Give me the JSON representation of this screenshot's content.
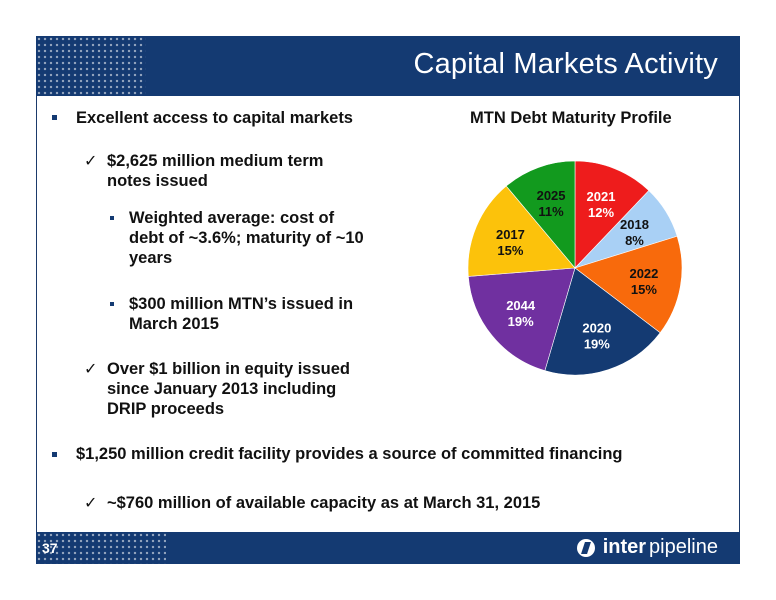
{
  "slide": {
    "title": "Capital Markets Activity",
    "page_number": "37",
    "logo_bold": "inter",
    "logo_regular": "pipeline"
  },
  "bullets": {
    "b1": "Excellent access to capital markets",
    "b1_1_l1": "$2,625 million medium term",
    "b1_1_l2": "notes issued",
    "b1_1_1_l1": "Weighted average: cost of",
    "b1_1_1_l2": "debt of ~3.6%; maturity of ~10",
    "b1_1_1_l3": "years",
    "b1_1_2_l1": "$300 million MTN’s issued in",
    "b1_1_2_l2": "March 2015",
    "b1_2_l1": "Over $1 billion in equity issued",
    "b1_2_l2": "since January 2013 including",
    "b1_2_l3": "DRIP proceeds",
    "b2": "$1,250 million credit facility provides a source of committed financing",
    "b2_1": "~$760 million of available capacity as at March 31, 2015",
    "check_glyph": "✓"
  },
  "chart_data": {
    "type": "pie",
    "title": "MTN Debt Maturity Profile",
    "slices": [
      {
        "label": "2021",
        "value": 12,
        "display": "12%",
        "color": "#ee1c1c",
        "text": "#ffffff"
      },
      {
        "label": "2018",
        "value": 8,
        "display": "8%",
        "color": "#a9d0f5",
        "text": "#111111"
      },
      {
        "label": "2022",
        "value": 15,
        "display": "15%",
        "color": "#f86a0c",
        "text": "#111111"
      },
      {
        "label": "2020",
        "value": 19,
        "display": "19%",
        "color": "#143a72",
        "text": "#ffffff"
      },
      {
        "label": "2044",
        "value": 19,
        "display": "19%",
        "color": "#7030a0",
        "text": "#ffffff"
      },
      {
        "label": "2017",
        "value": 15,
        "display": "15%",
        "color": "#fcc20b",
        "text": "#111111"
      },
      {
        "label": "2025",
        "value": 11,
        "display": "11%",
        "color": "#129a1e",
        "text": "#111111"
      }
    ]
  }
}
